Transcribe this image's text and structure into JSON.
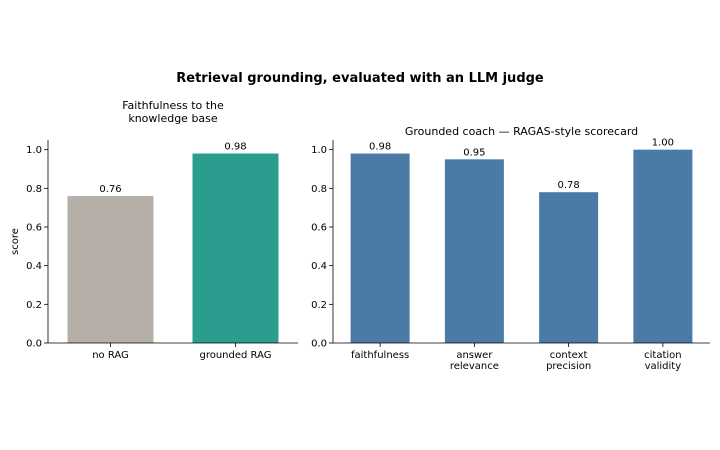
{
  "figure": {
    "suptitle": "Retrieval grounding, evaluated with an LLM judge"
  },
  "chart_data": [
    {
      "type": "bar",
      "title": "Faithfulness to the\nknowledge base",
      "xlabel": "",
      "ylabel": "score",
      "ylim": [
        0,
        1.05
      ],
      "yticks": [
        0.0,
        0.2,
        0.4,
        0.6,
        0.8,
        1.0
      ],
      "categories": [
        "no RAG",
        "grounded RAG"
      ],
      "values": [
        0.76,
        0.98
      ],
      "data_labels": [
        "0.76",
        "0.98"
      ],
      "colors": [
        "#b5afa8",
        "#2a9d8f"
      ],
      "grid": false
    },
    {
      "type": "bar",
      "title": "Grounded coach — RAGAS-style scorecard",
      "xlabel": "",
      "ylabel": "",
      "ylim": [
        0,
        1.05
      ],
      "yticks": [
        0.0,
        0.2,
        0.4,
        0.6,
        0.8,
        1.0
      ],
      "categories": [
        "faithfulness",
        "answer\nrelevance",
        "context\nprecision",
        "citation\nvalidity"
      ],
      "values": [
        0.98,
        0.95,
        0.78,
        1.0
      ],
      "data_labels": [
        "0.98",
        "0.95",
        "0.78",
        "1.00"
      ],
      "colors": [
        "#4a7ba6",
        "#4a7ba6",
        "#4a7ba6",
        "#4a7ba6"
      ],
      "grid": false
    }
  ]
}
